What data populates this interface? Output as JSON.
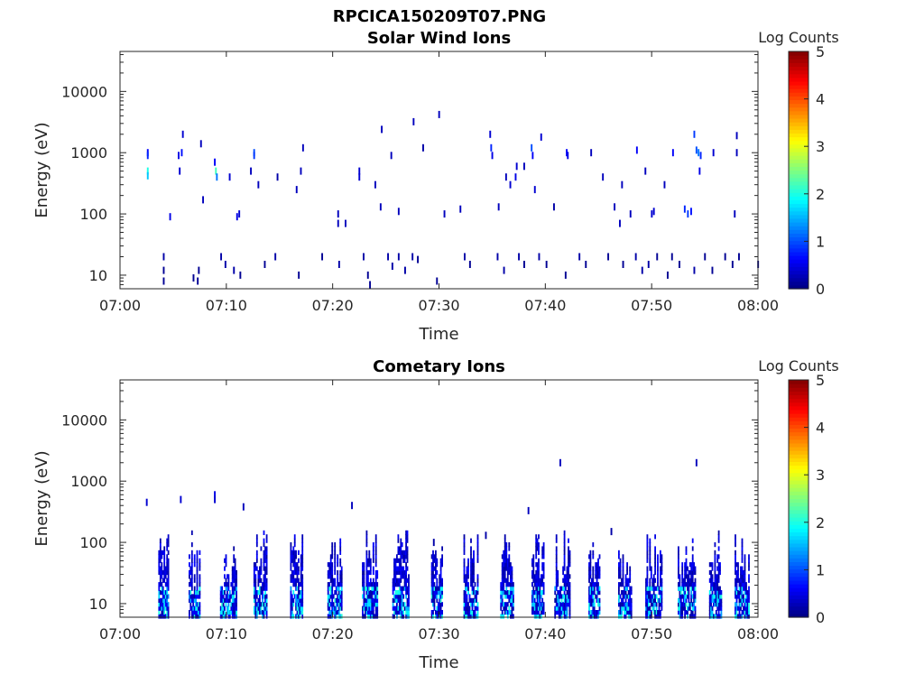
{
  "figure": {
    "title": "RPCICA150209T07.PNG"
  },
  "colorbar": {
    "label": "Log Counts",
    "ticks": [
      "0",
      "1",
      "2",
      "3",
      "4",
      "5"
    ],
    "range": [
      0,
      5
    ],
    "colormap": "jet"
  },
  "chart_data": [
    {
      "type": "heatmap",
      "title": "Solar Wind Ions",
      "xlabel": "Time",
      "ylabel": "Energy (eV)",
      "x_ticks": [
        "07:00",
        "07:10",
        "07:20",
        "07:30",
        "07:40",
        "07:50",
        "08:00"
      ],
      "y_ticks": [
        "10",
        "100",
        "1000",
        "10000"
      ],
      "x_range_min": [
        0,
        60
      ],
      "y_range_ev": [
        6,
        45000
      ],
      "y_scale": "log",
      "color_label": "Log Counts",
      "color_range": [
        0,
        5
      ],
      "points": [
        [
          2.6,
          1000,
          0.6
        ],
        [
          2.6,
          900,
          0.8
        ],
        [
          2.6,
          500,
          2.0
        ],
        [
          2.6,
          420,
          1.6
        ],
        [
          5.9,
          2000,
          0.4
        ],
        [
          5.8,
          1000,
          0.7
        ],
        [
          5.5,
          900,
          0.5
        ],
        [
          5.6,
          500,
          0.4
        ],
        [
          8.9,
          700,
          0.6
        ],
        [
          9.0,
          500,
          2.2
        ],
        [
          9.1,
          400,
          1.2
        ],
        [
          7.6,
          1400,
          0.3
        ],
        [
          12.6,
          1000,
          1.0
        ],
        [
          12.6,
          900,
          0.9
        ],
        [
          12.3,
          500,
          0.3
        ],
        [
          10.3,
          400,
          0.4
        ],
        [
          13.0,
          300,
          0.3
        ],
        [
          11.0,
          90,
          0.5
        ],
        [
          11.2,
          100,
          0.4
        ],
        [
          7.8,
          170,
          0.3
        ],
        [
          4.7,
          90,
          0.5
        ],
        [
          14.8,
          400,
          0.2
        ],
        [
          17.2,
          1200,
          0.3
        ],
        [
          17.0,
          500,
          0.3
        ],
        [
          16.6,
          250,
          0.3
        ],
        [
          20.5,
          100,
          0.3
        ],
        [
          20.5,
          70,
          0.3
        ],
        [
          21.2,
          70,
          0.3
        ],
        [
          22.5,
          500,
          0.4
        ],
        [
          22.5,
          400,
          0.4
        ],
        [
          24.0,
          300,
          0.3
        ],
        [
          24.6,
          2400,
          0.3
        ],
        [
          25.5,
          900,
          0.3
        ],
        [
          27.6,
          3200,
          0.3
        ],
        [
          28.5,
          1200,
          0.2
        ],
        [
          30.0,
          4200,
          0.3
        ],
        [
          24.5,
          130,
          0.3
        ],
        [
          26.2,
          110,
          0.3
        ],
        [
          30.5,
          100,
          0.3
        ],
        [
          32.0,
          120,
          0.3
        ],
        [
          34.8,
          2000,
          0.4
        ],
        [
          34.9,
          1200,
          0.8
        ],
        [
          35.0,
          900,
          0.5
        ],
        [
          36.7,
          300,
          0.4
        ],
        [
          37.2,
          400,
          0.5
        ],
        [
          37.3,
          600,
          0.4
        ],
        [
          38.0,
          600,
          0.3
        ],
        [
          38.7,
          1200,
          1.0
        ],
        [
          38.8,
          900,
          0.6
        ],
        [
          39.6,
          1800,
          0.4
        ],
        [
          39.0,
          250,
          0.4
        ],
        [
          42.0,
          1000,
          0.6
        ],
        [
          42.1,
          900,
          0.5
        ],
        [
          44.3,
          1000,
          0.3
        ],
        [
          45.4,
          400,
          0.3
        ],
        [
          47.2,
          300,
          0.3
        ],
        [
          48.6,
          1100,
          0.6
        ],
        [
          48.0,
          100,
          0.3
        ],
        [
          46.5,
          130,
          0.3
        ],
        [
          47.0,
          70,
          0.3
        ],
        [
          52.0,
          1000,
          0.6
        ],
        [
          51.2,
          300,
          0.3
        ],
        [
          50.0,
          100,
          0.4
        ],
        [
          50.2,
          110,
          0.4
        ],
        [
          54.0,
          2000,
          0.9
        ],
        [
          54.2,
          1100,
          1.0
        ],
        [
          54.4,
          1000,
          1.2
        ],
        [
          54.6,
          900,
          0.8
        ],
        [
          54.5,
          500,
          0.5
        ],
        [
          53.1,
          120,
          0.8
        ],
        [
          53.4,
          100,
          0.9
        ],
        [
          53.7,
          110,
          0.7
        ],
        [
          55.8,
          1000,
          0.4
        ],
        [
          58.0,
          1900,
          0.3
        ],
        [
          58.0,
          1000,
          0.3
        ],
        [
          57.8,
          100,
          0.3
        ],
        [
          36.3,
          400,
          0.3
        ],
        [
          35.6,
          130,
          0.3
        ],
        [
          40.8,
          130,
          0.2
        ],
        [
          49.4,
          500,
          0.3
        ],
        [
          4.1,
          20,
          0.2
        ],
        [
          4.1,
          12,
          0.1
        ],
        [
          4.1,
          8,
          0.1
        ],
        [
          6.9,
          9,
          0.1
        ],
        [
          7.4,
          12,
          0.1
        ],
        [
          7.3,
          8,
          0.1
        ],
        [
          9.5,
          20,
          0.2
        ],
        [
          9.9,
          15,
          0.2
        ],
        [
          10.7,
          12,
          0.2
        ],
        [
          11.3,
          10,
          0.1
        ],
        [
          13.6,
          15,
          0.1
        ],
        [
          14.6,
          20,
          0.2
        ],
        [
          16.8,
          10,
          0.1
        ],
        [
          19.0,
          20,
          0.1
        ],
        [
          20.6,
          15,
          0.2
        ],
        [
          22.9,
          20,
          0.2
        ],
        [
          23.3,
          10,
          0.1
        ],
        [
          23.5,
          7,
          0.1
        ],
        [
          25.2,
          20,
          0.2
        ],
        [
          25.6,
          14,
          0.2
        ],
        [
          26.2,
          20,
          0.2
        ],
        [
          26.8,
          12,
          0.2
        ],
        [
          27.5,
          20,
          0.2
        ],
        [
          28.0,
          18,
          0.1
        ],
        [
          29.8,
          8,
          0.1
        ],
        [
          32.4,
          20,
          0.2
        ],
        [
          32.9,
          15,
          0.1
        ],
        [
          35.5,
          20,
          0.2
        ],
        [
          36.1,
          12,
          0.2
        ],
        [
          37.5,
          20,
          0.2
        ],
        [
          38.0,
          15,
          0.1
        ],
        [
          39.4,
          20,
          0.2
        ],
        [
          40.1,
          15,
          0.1
        ],
        [
          41.9,
          10,
          0.1
        ],
        [
          43.2,
          20,
          0.2
        ],
        [
          43.8,
          15,
          0.1
        ],
        [
          45.9,
          20,
          0.1
        ],
        [
          47.3,
          15,
          0.1
        ],
        [
          48.5,
          20,
          0.2
        ],
        [
          49.1,
          12,
          0.2
        ],
        [
          49.7,
          15,
          0.2
        ],
        [
          50.5,
          20,
          0.1
        ],
        [
          51.5,
          10,
          0.1
        ],
        [
          51.9,
          20,
          0.1
        ],
        [
          52.6,
          15,
          0.1
        ],
        [
          54.0,
          12,
          0.2
        ],
        [
          55.0,
          20,
          0.1
        ],
        [
          55.7,
          12,
          0.1
        ],
        [
          56.9,
          20,
          0.1
        ],
        [
          57.6,
          15,
          0.1
        ],
        [
          58.2,
          20,
          0.1
        ],
        [
          60.0,
          15,
          0.1
        ]
      ]
    },
    {
      "type": "heatmap",
      "title": "Cometary Ions",
      "xlabel": "Time",
      "ylabel": "Energy (eV)",
      "x_ticks": [
        "07:00",
        "07:10",
        "07:20",
        "07:30",
        "07:40",
        "07:50",
        "08:00"
      ],
      "y_ticks": [
        "10",
        "100",
        "1000",
        "10000"
      ],
      "x_range_min": [
        0,
        60
      ],
      "y_range_ev": [
        6,
        45000
      ],
      "y_scale": "log",
      "color_label": "Log Counts",
      "color_range": [
        0,
        5
      ],
      "bursts": [
        [
          4.1,
          1.0
        ],
        [
          7.0,
          1.1
        ],
        [
          10.2,
          1.6
        ],
        [
          13.2,
          1.3
        ],
        [
          16.6,
          1.2
        ],
        [
          20.2,
          1.4
        ],
        [
          23.5,
          1.5
        ],
        [
          26.4,
          1.6
        ],
        [
          29.8,
          1.1
        ],
        [
          33.0,
          1.4
        ],
        [
          36.4,
          1.3
        ],
        [
          39.3,
          1.2
        ],
        [
          41.6,
          1.5
        ],
        [
          44.6,
          1.1
        ],
        [
          47.5,
          1.3
        ],
        [
          50.2,
          1.6
        ],
        [
          53.3,
          1.7
        ],
        [
          56.0,
          1.2
        ],
        [
          58.5,
          1.4
        ]
      ],
      "points": [
        [
          2.5,
          450,
          0.4
        ],
        [
          5.7,
          500,
          0.4
        ],
        [
          8.9,
          600,
          0.5
        ],
        [
          8.9,
          500,
          0.4
        ],
        [
          11.6,
          380,
          0.3
        ],
        [
          21.8,
          400,
          0.3
        ],
        [
          38.4,
          330,
          0.3
        ],
        [
          41.4,
          2000,
          0.3
        ],
        [
          54.2,
          2000,
          0.3
        ],
        [
          46.2,
          150,
          0.2
        ],
        [
          34.4,
          130,
          0.2
        ],
        [
          29.5,
          100,
          0.2
        ]
      ]
    }
  ]
}
